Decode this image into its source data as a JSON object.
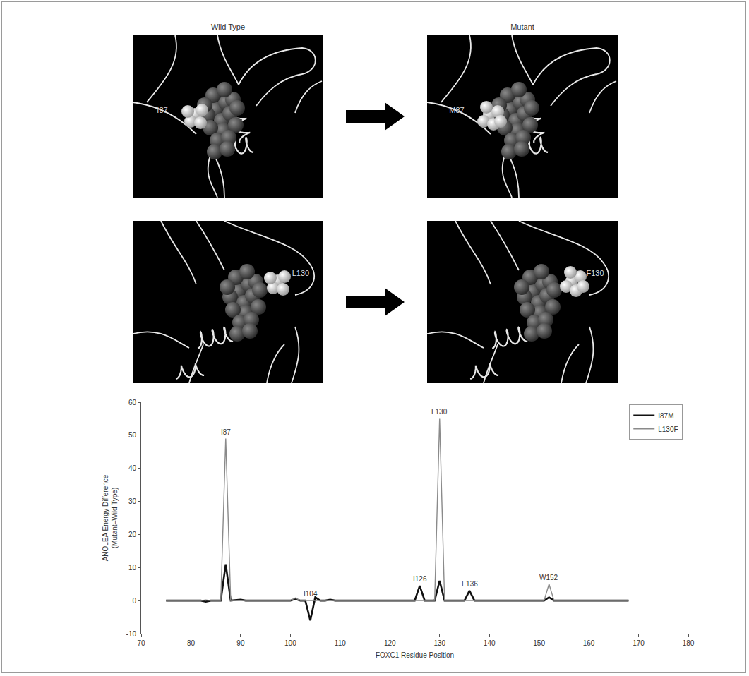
{
  "structures": {
    "column_titles": [
      "Wild Type",
      "Mutant"
    ],
    "rows": [
      {
        "wild_type": "I87",
        "mutant": "M87"
      },
      {
        "wild_type": "L130",
        "mutant": "F130"
      }
    ]
  },
  "chart_data": {
    "type": "line",
    "x_label": "FOXC1 Residue Position",
    "y_label": "ANOLEA Energy Difference (Mutant–Wild Type)",
    "x": [
      75,
      82,
      83,
      84,
      86,
      87,
      88,
      90,
      91,
      92,
      100,
      101,
      102,
      103,
      104,
      105,
      106,
      107,
      108,
      109,
      125,
      126,
      127,
      129,
      130,
      131,
      135,
      136,
      137,
      151,
      152,
      153,
      168
    ],
    "series": [
      {
        "name": "I87M",
        "color": "#111111",
        "values": [
          0,
          0,
          -0.3,
          0,
          0,
          11,
          0,
          0.3,
          0,
          0,
          0,
          0.5,
          0,
          0,
          -6,
          1,
          0,
          0,
          0.3,
          0,
          0,
          4.5,
          0,
          0,
          6,
          0,
          0,
          3,
          0,
          0,
          1,
          0,
          0
        ]
      },
      {
        "name": "L130F",
        "color": "#8a8a8a",
        "values": [
          0,
          0,
          0.2,
          0,
          0,
          49,
          0,
          0,
          0,
          0,
          0,
          0.8,
          0,
          0,
          0,
          0,
          0,
          0,
          0,
          0,
          0,
          0,
          0,
          0,
          55,
          0,
          0,
          0,
          0,
          0,
          5,
          0,
          0
        ]
      }
    ],
    "annotations": [
      {
        "text": "I87",
        "x": 87
      },
      {
        "text": "I104",
        "x": 104
      },
      {
        "text": "I126",
        "x": 126
      },
      {
        "text": "L130",
        "x": 130
      },
      {
        "text": "F136",
        "x": 136
      },
      {
        "text": "W152",
        "x": 152
      }
    ],
    "xlim": [
      70,
      180
    ],
    "xticks": [
      70,
      80,
      90,
      100,
      110,
      120,
      130,
      140,
      150,
      160,
      170,
      180
    ],
    "ylim": [
      -10,
      60
    ],
    "yticks": [
      -10,
      0,
      10,
      20,
      30,
      40,
      50,
      60
    ],
    "grid": false,
    "legend": "top right"
  }
}
